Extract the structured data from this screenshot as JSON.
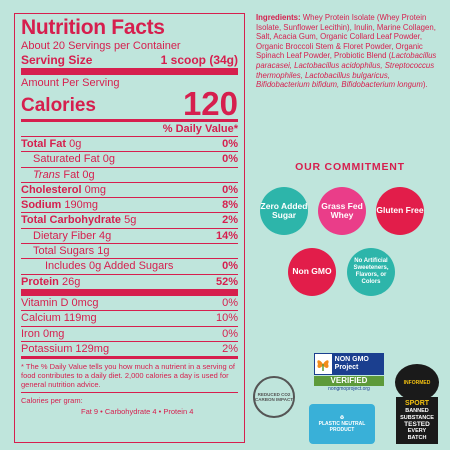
{
  "nutrition": {
    "title": "Nutrition Facts",
    "servings": "About 20 Servings per Container",
    "serving_size_label": "Serving Size",
    "serving_size_value": "1 scoop (34g)",
    "amount_per_serving": "Amount Per Serving",
    "calories_label": "Calories",
    "calories_value": "120",
    "daily_value_header": "% Daily Value*",
    "rows": [
      {
        "label": "Total Fat",
        "amount": "0g",
        "pct": "0%"
      },
      {
        "label": "Saturated Fat",
        "amount": "0g",
        "pct": "0%"
      },
      {
        "label": "Trans",
        "amount": "Fat 0g",
        "pct": ""
      },
      {
        "label": "Cholesterol",
        "amount": "0mg",
        "pct": "0%"
      },
      {
        "label": "Sodium",
        "amount": "190mg",
        "pct": "8%"
      },
      {
        "label": "Total Carbohydrate",
        "amount": "5g",
        "pct": "2%"
      },
      {
        "label": "Dietary Fiber",
        "amount": "4g",
        "pct": "14%"
      },
      {
        "label": "Total Sugars",
        "amount": "1g",
        "pct": ""
      },
      {
        "label": "Includes 0g Added Sugars",
        "amount": "",
        "pct": "0%"
      },
      {
        "label": "Protein",
        "amount": "26g",
        "pct": "52%"
      },
      {
        "label": "Vitamin D",
        "amount": "0mcg",
        "pct": "0%"
      },
      {
        "label": "Calcium",
        "amount": "119mg",
        "pct": "10%"
      },
      {
        "label": "Iron",
        "amount": "0mg",
        "pct": "0%"
      },
      {
        "label": "Potassium",
        "amount": "129mg",
        "pct": "2%"
      }
    ],
    "footnote": "* The % Daily Value tells you how much a nutrient in a serving of food contributes to a daily diet. 2,000 calories a day is used for general nutrition advice.",
    "calories_per_gram_label": "Calories per gram:",
    "calories_per_gram_values": "Fat 9  •  Carbohydrate 4  •  Protein 4"
  },
  "ingredients": {
    "label": "Ingredients:",
    "text_plain": "Whey Protein Isolate (Whey Protein Isolate, Sunflower Lecithin), Inulin, Marine Collagen, Salt, Acacia Gum, Organic Collard Leaf Powder, Organic Broccoli Stem & Floret Powder, Organic Spinach Leaf Powder, Probiotic Blend (",
    "text_italic": "Lactobacillus paracasei, Lactobacillus acidophilus, Streptococcus thermophiles, Lactobacillus bulgaricus, Bifidobacterium bifidum, Bifidobacterium longum",
    "text_end": ")."
  },
  "commitment": {
    "title": "OUR COMMITMENT",
    "items": [
      {
        "label": "Zero Added Sugar",
        "color": "#2db5aa"
      },
      {
        "label": "Grass Fed Whey",
        "color": "#ea3d89"
      },
      {
        "label": "Gluten Free",
        "color": "#e21d4a"
      },
      {
        "label": "Non GMO",
        "color": "#e21d4a"
      },
      {
        "label": "No Artificial Sweeteners, Flavors, or Colors",
        "color": "#2db5aa"
      }
    ]
  },
  "badges": {
    "nongmo_top": "NON GMO Project",
    "nongmo_verified": "VERIFIED",
    "nongmo_url": "nongmoproject.org",
    "informed_disc": "INFORMED",
    "informed_sport": "SPORT",
    "informed_banned": "BANNED SUBSTANCE",
    "informed_tested": "TESTED",
    "informed_every": "EVERY BATCH",
    "carbon_text": "REDUCED CO2 CARBON IMPACT",
    "plastic_text": "PLASTIC NEUTRAL PRODUCT"
  }
}
